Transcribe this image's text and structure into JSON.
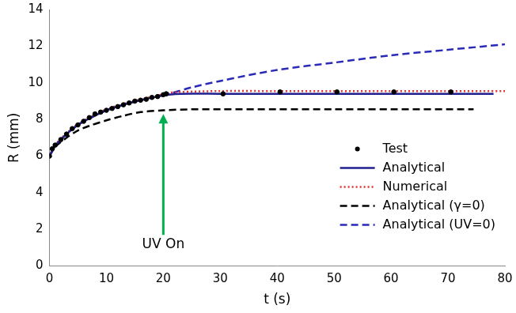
{
  "chart_data": {
    "type": "scatter",
    "x_label": "t (s)",
    "y_label": "R (mm)",
    "xlim": [
      0,
      80
    ],
    "xticks": [
      0,
      10,
      20,
      30,
      40,
      50,
      60,
      70,
      80
    ],
    "ylim": [
      0,
      14
    ],
    "yticks": [
      0,
      2,
      4,
      6,
      8,
      10,
      12,
      14
    ],
    "grid": false,
    "legend": "lower right",
    "series": [
      {
        "name": "Test",
        "type": "scatter",
        "marker": "circle",
        "color": "#000000",
        "x": [
          0,
          0.5,
          1,
          2,
          3,
          4,
          5,
          6,
          7,
          8,
          9,
          10,
          11,
          12,
          13,
          14,
          15,
          16,
          17,
          18,
          19,
          20,
          20.5,
          30.5,
          40.5,
          50.5,
          60.5,
          70.5
        ],
        "values": [
          6.0,
          6.4,
          6.6,
          6.9,
          7.2,
          7.5,
          7.7,
          7.9,
          8.1,
          8.3,
          8.4,
          8.5,
          8.6,
          8.7,
          8.8,
          8.9,
          9.0,
          9.05,
          9.1,
          9.2,
          9.25,
          9.35,
          9.4,
          9.4,
          9.5,
          9.5,
          9.5,
          9.5
        ]
      },
      {
        "name": "Analytical",
        "type": "line",
        "line_style": "solid",
        "color": "#1f1f8f",
        "x": [
          0,
          1,
          2,
          3,
          5,
          7,
          10,
          13,
          16,
          19,
          21,
          23,
          30,
          40,
          50,
          60,
          70,
          78
        ],
        "values": [
          6.0,
          6.55,
          6.9,
          7.2,
          7.7,
          8.05,
          8.5,
          8.8,
          9.05,
          9.25,
          9.35,
          9.4,
          9.4,
          9.4,
          9.4,
          9.4,
          9.4,
          9.4
        ]
      },
      {
        "name": "Numerical",
        "type": "line",
        "line_style": "dotted",
        "color": "#e03030",
        "x": [
          0,
          1,
          2,
          3,
          5,
          7,
          10,
          13,
          16,
          19,
          21,
          23,
          30,
          40,
          50,
          60,
          70,
          80
        ],
        "values": [
          6.0,
          6.6,
          6.95,
          7.25,
          7.75,
          8.1,
          8.55,
          8.85,
          9.1,
          9.3,
          9.45,
          9.5,
          9.55,
          9.55,
          9.55,
          9.55,
          9.55,
          9.55
        ]
      },
      {
        "name": "Analytical (γ=0)",
        "type": "line",
        "line_style": "dashed",
        "color": "#000000",
        "x": [
          0,
          1,
          3,
          5,
          7,
          10,
          13,
          16,
          20,
          25,
          30,
          40,
          50,
          60,
          74.5
        ],
        "values": [
          6.0,
          6.5,
          7.0,
          7.4,
          7.65,
          7.95,
          8.2,
          8.4,
          8.5,
          8.55,
          8.55,
          8.55,
          8.55,
          8.55,
          8.55
        ]
      },
      {
        "name": "Analytical (UV=0)",
        "type": "line",
        "line_style": "dashed",
        "color": "#2a2ab8",
        "x": [
          0,
          1,
          2,
          3,
          5,
          7,
          10,
          13,
          16,
          19,
          21,
          25,
          30,
          40,
          50,
          60,
          70,
          80
        ],
        "values": [
          6.0,
          6.55,
          6.9,
          7.2,
          7.7,
          8.05,
          8.5,
          8.8,
          9.05,
          9.25,
          9.4,
          9.75,
          10.1,
          10.7,
          11.1,
          11.5,
          11.8,
          12.1
        ]
      }
    ],
    "annotations": [
      {
        "text": "UV On",
        "x": 20,
        "y_start": 1.7,
        "y_end": 8.3,
        "color": "#00b050"
      }
    ]
  }
}
